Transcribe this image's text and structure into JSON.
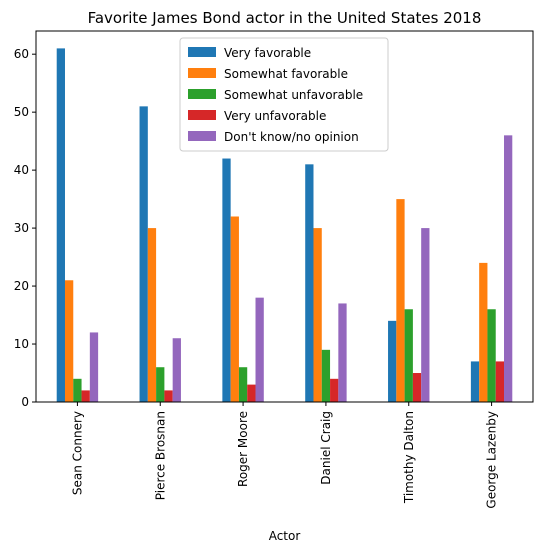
{
  "chart_data": {
    "type": "bar",
    "title": "Favorite James Bond actor in the United States 2018",
    "xlabel": "Actor",
    "ylabel": "",
    "categories": [
      "Sean Connery",
      "Pierce Brosnan",
      "Roger Moore",
      "Daniel Craig",
      "Timothy Dalton",
      "George Lazenby"
    ],
    "series": [
      {
        "name": "Very favorable",
        "values": [
          61,
          51,
          42,
          41,
          14,
          7
        ],
        "color": "#1f77b4"
      },
      {
        "name": "Somewhat favorable",
        "values": [
          21,
          30,
          32,
          30,
          35,
          24
        ],
        "color": "#ff7f0e"
      },
      {
        "name": "Somewhat unfavorable",
        "values": [
          4,
          6,
          6,
          9,
          16,
          16
        ],
        "color": "#2ca02c"
      },
      {
        "name": "Very unfavorable",
        "values": [
          2,
          2,
          3,
          4,
          5,
          7
        ],
        "color": "#d62728"
      },
      {
        "name": "Don't know/no opinion",
        "values": [
          12,
          11,
          18,
          17,
          30,
          46
        ],
        "color": "#9467bd"
      }
    ],
    "ylim": [
      0,
      64
    ],
    "yticks": [
      0,
      10,
      20,
      30,
      40,
      50,
      60
    ],
    "grid": false,
    "legend": "top-center"
  }
}
